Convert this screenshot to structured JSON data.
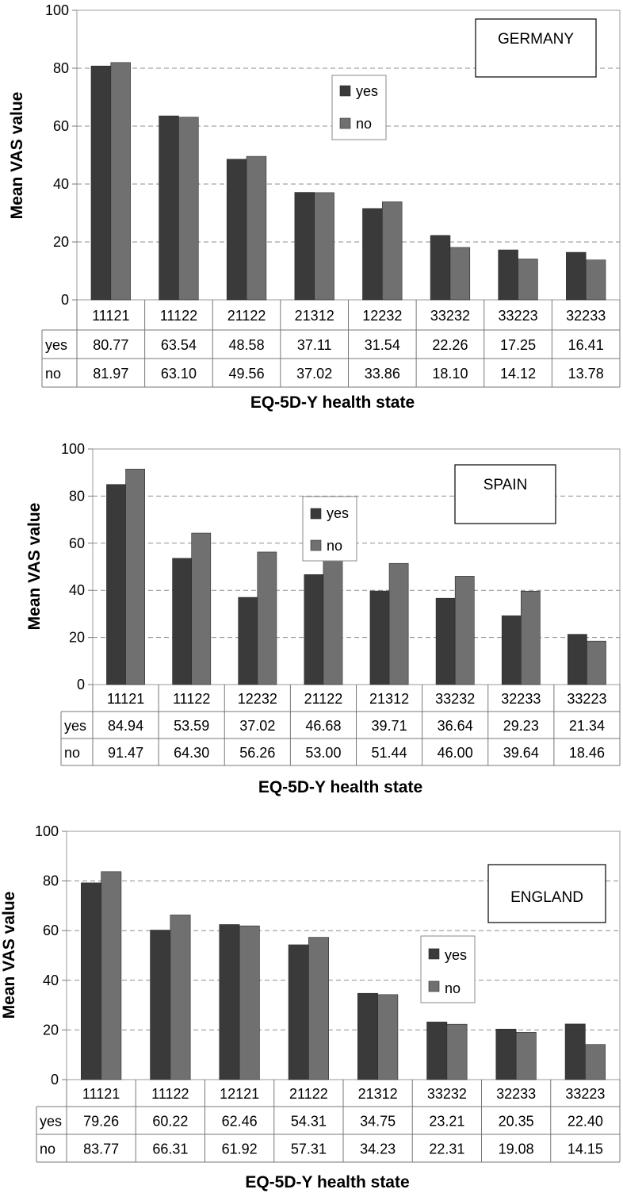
{
  "chart_data": [
    {
      "type": "bar",
      "title": "GERMANY",
      "xlabel": "EQ-5D-Y health state",
      "ylabel": "Mean VAS value",
      "ylim": [
        0,
        100
      ],
      "yticks": [
        0,
        20,
        40,
        60,
        80,
        100
      ],
      "grid": true,
      "legend_position": "top-center",
      "categories": [
        "11121",
        "11122",
        "21122",
        "21312",
        "12232",
        "33232",
        "33223",
        "32233"
      ],
      "series": [
        {
          "name": "yes",
          "color": "#3a3a3a",
          "values": [
            80.77,
            63.54,
            48.58,
            37.11,
            31.54,
            22.26,
            17.25,
            16.41
          ],
          "labels": [
            "80.77",
            "63.54",
            "48.58",
            "37.11",
            "31.54",
            "22.26",
            "17.25",
            "16.41"
          ]
        },
        {
          "name": "no",
          "color": "#707070",
          "values": [
            81.97,
            63.1,
            49.56,
            37.02,
            33.86,
            18.1,
            14.12,
            13.78
          ],
          "labels": [
            "81.97",
            "63.10",
            "49.56",
            "37.02",
            "33.86",
            "18.10",
            "14.12",
            "13.78"
          ]
        }
      ]
    },
    {
      "type": "bar",
      "title": "SPAIN",
      "xlabel": "EQ-5D-Y health state",
      "ylabel": "Mean VAS value",
      "ylim": [
        0,
        100
      ],
      "yticks": [
        0,
        20,
        40,
        60,
        80,
        100
      ],
      "grid": true,
      "legend_position": "top-center",
      "categories": [
        "11121",
        "11122",
        "12232",
        "21122",
        "21312",
        "33232",
        "32233",
        "33223"
      ],
      "series": [
        {
          "name": "yes",
          "color": "#3a3a3a",
          "values": [
            84.94,
            53.59,
            37.02,
            46.68,
            39.71,
            36.64,
            29.23,
            21.34
          ],
          "labels": [
            "84.94",
            "53.59",
            "37.02",
            "46.68",
            "39.71",
            "36.64",
            "29.23",
            "21.34"
          ]
        },
        {
          "name": "no",
          "color": "#707070",
          "values": [
            91.47,
            64.3,
            56.26,
            53.0,
            51.44,
            46.0,
            39.64,
            18.46
          ],
          "labels": [
            "91.47",
            "64.30",
            "56.26",
            "53.00",
            "51.44",
            "46.00",
            "39.64",
            "18.46"
          ]
        }
      ]
    },
    {
      "type": "bar",
      "title": "ENGLAND",
      "xlabel": "EQ-5D-Y health state",
      "ylabel": "Mean VAS value",
      "ylim": [
        0,
        100
      ],
      "yticks": [
        0,
        20,
        40,
        60,
        80,
        100
      ],
      "grid": true,
      "legend_position": "right",
      "categories": [
        "11121",
        "11122",
        "12121",
        "21122",
        "21312",
        "33232",
        "32233",
        "33223"
      ],
      "series": [
        {
          "name": "yes",
          "color": "#3a3a3a",
          "values": [
            79.26,
            60.22,
            62.46,
            54.31,
            34.75,
            23.21,
            20.35,
            22.4
          ],
          "labels": [
            "79.26",
            "60.22",
            "62.46",
            "54.31",
            "34.75",
            "23.21",
            "20.35",
            "22.40"
          ]
        },
        {
          "name": "no",
          "color": "#707070",
          "values": [
            83.77,
            66.31,
            61.92,
            57.31,
            34.23,
            22.31,
            19.08,
            14.15
          ],
          "labels": [
            "83.77",
            "66.31",
            "61.92",
            "57.31",
            "34.23",
            "22.31",
            "19.08",
            "14.15"
          ]
        }
      ]
    }
  ]
}
